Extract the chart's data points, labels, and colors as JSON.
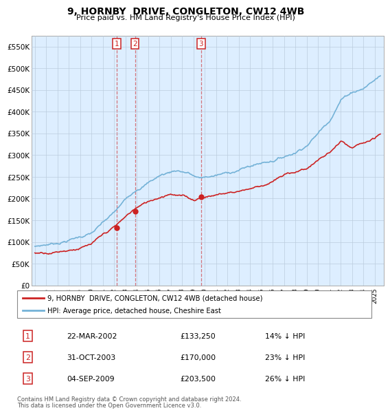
{
  "title": "9, HORNBY  DRIVE, CONGLETON, CW12 4WB",
  "subtitle": "Price paid vs. HM Land Registry's House Price Index (HPI)",
  "ylabel_ticks": [
    "£0",
    "£50K",
    "£100K",
    "£150K",
    "£200K",
    "£250K",
    "£300K",
    "£350K",
    "£400K",
    "£450K",
    "£500K",
    "£550K"
  ],
  "ylim": [
    0,
    575000
  ],
  "hpi_color": "#74b2d7",
  "price_color": "#cc2222",
  "legend_label_red": "9, HORNBY  DRIVE, CONGLETON, CW12 4WB (detached house)",
  "legend_label_blue": "HPI: Average price, detached house, Cheshire East",
  "transactions": [
    {
      "num": 1,
      "date": "22-MAR-2002",
      "price": "£133,250",
      "pct": "14% ↓ HPI",
      "year": 2002.22
    },
    {
      "num": 2,
      "date": "31-OCT-2003",
      "price": "£170,000",
      "pct": "23% ↓ HPI",
      "year": 2003.83
    },
    {
      "num": 3,
      "date": "04-SEP-2009",
      "price": "£203,500",
      "pct": "26% ↓ HPI",
      "year": 2009.67
    }
  ],
  "transaction_values": [
    133250,
    170000,
    203500
  ],
  "footnote1": "Contains HM Land Registry data © Crown copyright and database right 2024.",
  "footnote2": "This data is licensed under the Open Government Licence v3.0.",
  "chart_bg": "#ddeeff",
  "grid_color": "#bbccdd"
}
